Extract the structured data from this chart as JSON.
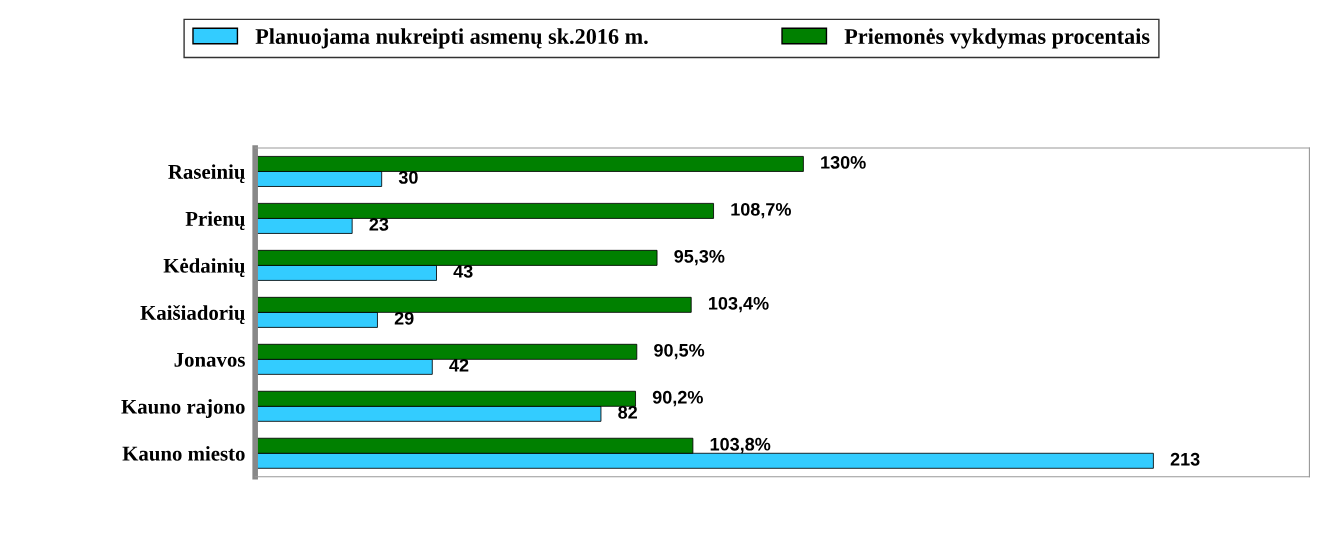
{
  "chart_data": {
    "type": "bar",
    "orientation": "horizontal",
    "categories": [
      "Raseinių",
      "Prienų",
      "Kėdainių",
      "Kaišiadorių",
      "Jonavos",
      "Kauno rajono",
      "Kauno miesto"
    ],
    "series": [
      {
        "name": "Planuojama nukreipti asmenų sk.2016 m.",
        "color": "#33ccff",
        "values": [
          30,
          23,
          43,
          29,
          42,
          82,
          213
        ],
        "value_labels": [
          "30",
          "23",
          "43",
          "29",
          "42",
          "82",
          "213"
        ]
      },
      {
        "name": "Priemonės vykdymas procentais",
        "color": "#008000",
        "values": [
          130,
          108.7,
          95.3,
          103.4,
          90.5,
          90.2,
          103.8
        ],
        "value_labels": [
          "130%",
          "108,7%",
          "95,3%",
          "103,4%",
          "90,5%",
          "90,2%",
          "103,8%"
        ]
      }
    ],
    "xlim": [
      0,
      250
    ],
    "tick_labels": "y",
    "legend": "top",
    "grid": false
  }
}
